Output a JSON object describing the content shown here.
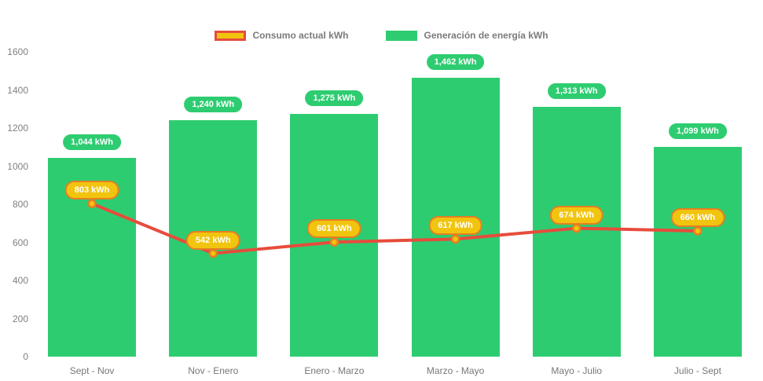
{
  "legend": {
    "items": [
      {
        "id": "consumo",
        "label": "Consumo actual kWh",
        "swatch_fill": "#f1c40f",
        "swatch_border": "#e74c3c"
      },
      {
        "id": "generacion",
        "label": "Generación de energía kWh",
        "swatch_fill": "#2ecc71",
        "swatch_border": "#2ecc71"
      }
    ]
  },
  "colors": {
    "bar_green": "#2ecc71",
    "line_red": "#e74c3c",
    "point_yellow": "#f1c40f",
    "point_border_orange": "#e67e22",
    "badge_green_bg": "#2ecc71",
    "badge_yellow_bg": "#f1c40f",
    "badge_yellow_border": "#e67e22",
    "axis_text": "#808080"
  },
  "chart_data": {
    "type": "bar+line",
    "categories": [
      "Sept - Nov",
      "Nov - Enero",
      "Enero - Marzo",
      "Marzo - Mayo",
      "Mayo - Julio",
      "Julio - Sept"
    ],
    "series": [
      {
        "name": "Generación de energía kWh",
        "type": "bar",
        "color": "#2ecc71",
        "values": [
          1044,
          1240,
          1275,
          1462,
          1313,
          1099
        ],
        "labels": [
          "1,044 kWh",
          "1,240 kWh",
          "1,275 kWh",
          "1,462 kWh",
          "1,313 kWh",
          "1,099 kWh"
        ]
      },
      {
        "name": "Consumo actual kWh",
        "type": "line",
        "color": "#e74c3c",
        "point_fill": "#f1c40f",
        "point_border": "#e67e22",
        "values": [
          803,
          542,
          601,
          617,
          674,
          660
        ],
        "labels": [
          "803 kWh",
          "542 kWh",
          "601 kWh",
          "617 kWh",
          "674 kWh",
          "660 kWh"
        ]
      }
    ],
    "ylim": [
      0,
      1600
    ],
    "yticks": [
      0,
      200,
      400,
      600,
      800,
      1000,
      1200,
      1400,
      1600
    ],
    "grid": false,
    "legend_position": "top-center",
    "xlabel": "",
    "ylabel": ""
  }
}
